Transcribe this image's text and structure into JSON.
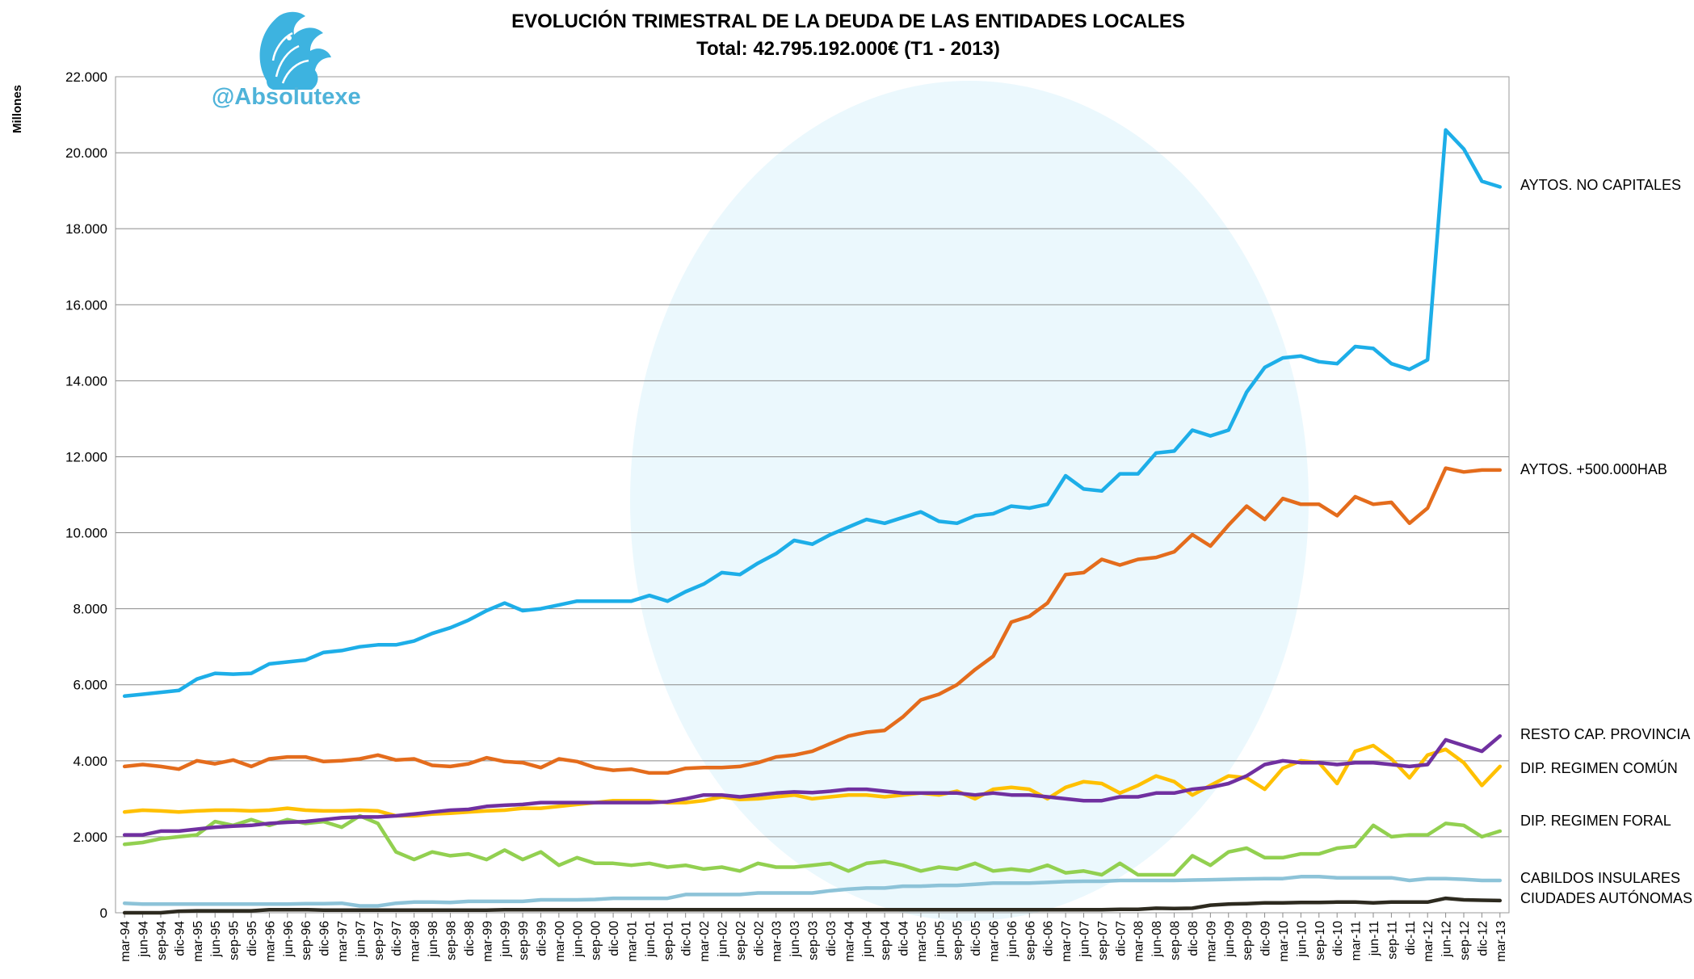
{
  "watermark": {
    "handle": "@Absolutexe",
    "logo_icon": "griffin-logo-icon"
  },
  "chart_data": {
    "type": "line",
    "title": "EVOLUCIÓN TRIMESTRAL DE LA DEUDA DE LAS ENTIDADES LOCALES",
    "subtitle": "Total: 42.795.192.000€ (T1 - 2013)",
    "xlabel": "",
    "ylabel": "Millones",
    "ylim": [
      0,
      22000
    ],
    "yticks": [
      0,
      2000,
      4000,
      6000,
      8000,
      10000,
      12000,
      14000,
      16000,
      18000,
      20000,
      22000
    ],
    "ytick_labels": [
      "0",
      "2.000",
      "4.000",
      "6.000",
      "8.000",
      "10.000",
      "12.000",
      "14.000",
      "16.000",
      "18.000",
      "20.000",
      "22.000"
    ],
    "grid": "horizontal",
    "legend": "labels at right end of each line",
    "categories": [
      "mar-94",
      "jun-94",
      "sep-94",
      "dic-94",
      "mar-95",
      "jun-95",
      "sep-95",
      "dic-95",
      "mar-96",
      "jun-96",
      "sep-96",
      "dic-96",
      "mar-97",
      "jun-97",
      "sep-97",
      "dic-97",
      "mar-98",
      "jun-98",
      "sep-98",
      "dic-98",
      "mar-99",
      "jun-99",
      "sep-99",
      "dic-99",
      "mar-00",
      "jun-00",
      "sep-00",
      "dic-00",
      "mar-01",
      "jun-01",
      "sep-01",
      "dic-01",
      "mar-02",
      "jun-02",
      "sep-02",
      "dic-02",
      "mar-03",
      "jun-03",
      "sep-03",
      "dic-03",
      "mar-04",
      "jun-04",
      "sep-04",
      "dic-04",
      "mar-05",
      "jun-05",
      "sep-05",
      "dic-05",
      "mar-06",
      "jun-06",
      "sep-06",
      "dic-06",
      "mar-07",
      "jun-07",
      "sep-07",
      "dic-07",
      "mar-08",
      "jun-08",
      "sep-08",
      "dic-08",
      "mar-09",
      "jun-09",
      "sep-09",
      "dic-09",
      "mar-10",
      "jun-10",
      "sep-10",
      "dic-10",
      "mar-11",
      "jun-11",
      "sep-11",
      "dic-11",
      "mar-12",
      "jun-12",
      "sep-12",
      "dic-12",
      "mar-13"
    ],
    "series": [
      {
        "name": "AYTOS. NO CAPITALES",
        "color": "#1daee8",
        "values": [
          5700,
          5750,
          5800,
          5850,
          6150,
          6300,
          6280,
          6300,
          6550,
          6600,
          6650,
          6850,
          6900,
          7000,
          7050,
          7050,
          7150,
          7350,
          7500,
          7700,
          7950,
          8150,
          7950,
          8000,
          8100,
          8200,
          8200,
          8200,
          8200,
          8350,
          8200,
          8450,
          8650,
          8950,
          8900,
          9200,
          9450,
          9800,
          9700,
          9950,
          10150,
          10350,
          10250,
          10400,
          10550,
          10300,
          10250,
          10450,
          10500,
          10700,
          10650,
          10750,
          11500,
          11150,
          11100,
          11550,
          11550,
          12100,
          12150,
          12700,
          12550,
          12700,
          13700,
          14350,
          14600,
          14650,
          14500,
          14450,
          14900,
          14850,
          14450,
          14300,
          14550,
          20600,
          20100,
          19250,
          19100
        ]
      },
      {
        "name": "AYTOS. +500.000HAB",
        "color": "#e46c1c",
        "values": [
          3850,
          3900,
          3850,
          3780,
          4000,
          3920,
          4020,
          3850,
          4050,
          4100,
          4100,
          3980,
          4000,
          4050,
          4150,
          4020,
          4050,
          3880,
          3850,
          3920,
          4080,
          3980,
          3950,
          3820,
          4050,
          3980,
          3820,
          3750,
          3780,
          3680,
          3680,
          3800,
          3820,
          3820,
          3850,
          3950,
          4100,
          4150,
          4250,
          4450,
          4650,
          4750,
          4800,
          5150,
          5600,
          5750,
          6000,
          6400,
          6750,
          7650,
          7800,
          8150,
          8900,
          8950,
          9300,
          9150,
          9300,
          9350,
          9500,
          9950,
          9650,
          10200,
          10700,
          10350,
          10900,
          10750,
          10750,
          10450,
          10950,
          10750,
          10800,
          10250,
          10650,
          11700,
          11600,
          11650,
          11650
        ]
      },
      {
        "name": "RESTO CAP. PROVINCIA",
        "color": "#7030a0",
        "values": [
          2050,
          2050,
          2150,
          2150,
          2200,
          2250,
          2280,
          2300,
          2350,
          2380,
          2400,
          2450,
          2500,
          2520,
          2520,
          2550,
          2600,
          2650,
          2700,
          2720,
          2800,
          2830,
          2850,
          2900,
          2900,
          2900,
          2900,
          2900,
          2900,
          2900,
          2920,
          3000,
          3100,
          3100,
          3050,
          3100,
          3150,
          3180,
          3160,
          3200,
          3250,
          3250,
          3200,
          3150,
          3150,
          3150,
          3150,
          3100,
          3150,
          3100,
          3100,
          3050,
          3000,
          2950,
          2950,
          3050,
          3050,
          3150,
          3150,
          3250,
          3300,
          3400,
          3600,
          3900,
          4000,
          3950,
          3950,
          3900,
          3950,
          3950,
          3900,
          3850,
          3900,
          4550,
          4400,
          4250,
          4650
        ]
      },
      {
        "name": "DIP. REGIMEN COMÚN",
        "color": "#ffc000",
        "values": [
          2650,
          2700,
          2680,
          2650,
          2680,
          2700,
          2700,
          2680,
          2700,
          2750,
          2700,
          2680,
          2680,
          2700,
          2680,
          2550,
          2550,
          2600,
          2620,
          2650,
          2680,
          2700,
          2750,
          2750,
          2800,
          2850,
          2900,
          2950,
          2950,
          2950,
          2900,
          2900,
          2950,
          3050,
          2980,
          3000,
          3050,
          3100,
          3000,
          3050,
          3100,
          3100,
          3050,
          3100,
          3150,
          3100,
          3200,
          3000,
          3250,
          3300,
          3250,
          3000,
          3300,
          3450,
          3400,
          3150,
          3350,
          3600,
          3450,
          3100,
          3350,
          3600,
          3550,
          3250,
          3800,
          4000,
          3950,
          3400,
          4250,
          4400,
          4050,
          3550,
          4150,
          4300,
          3950,
          3350,
          3850
        ]
      },
      {
        "name": "DIP. REGIMEN FORAL",
        "color": "#92d050",
        "values": [
          1800,
          1850,
          1950,
          2000,
          2050,
          2400,
          2300,
          2450,
          2300,
          2450,
          2350,
          2400,
          2250,
          2550,
          2350,
          1600,
          1400,
          1600,
          1500,
          1550,
          1400,
          1650,
          1400,
          1600,
          1250,
          1450,
          1300,
          1300,
          1250,
          1300,
          1200,
          1250,
          1150,
          1200,
          1100,
          1300,
          1200,
          1200,
          1250,
          1300,
          1100,
          1300,
          1350,
          1250,
          1100,
          1200,
          1150,
          1300,
          1100,
          1150,
          1100,
          1250,
          1050,
          1100,
          1000,
          1300,
          1000,
          1000,
          1000,
          1500,
          1250,
          1600,
          1700,
          1450,
          1450,
          1550,
          1550,
          1700,
          1750,
          2300,
          2000,
          2050,
          2050,
          2350,
          2300,
          2000,
          2150
        ]
      },
      {
        "name": "CABILDOS INSULARES",
        "color": "#8dc3d8",
        "values": [
          250,
          230,
          230,
          230,
          230,
          230,
          230,
          230,
          230,
          230,
          240,
          240,
          250,
          180,
          180,
          250,
          280,
          280,
          270,
          300,
          300,
          300,
          300,
          340,
          340,
          340,
          350,
          380,
          380,
          380,
          380,
          480,
          480,
          480,
          480,
          520,
          520,
          520,
          520,
          580,
          620,
          650,
          650,
          700,
          700,
          720,
          720,
          750,
          780,
          780,
          780,
          800,
          820,
          830,
          830,
          850,
          850,
          850,
          850,
          860,
          870,
          880,
          890,
          900,
          900,
          950,
          950,
          920,
          920,
          920,
          920,
          850,
          900,
          900,
          880,
          850,
          850
        ]
      },
      {
        "name": "CIUDADES AUTÓNOMAS",
        "color": "#2d2a1f",
        "values": [
          0,
          0,
          0,
          40,
          50,
          50,
          50,
          50,
          80,
          80,
          80,
          70,
          70,
          70,
          70,
          70,
          70,
          70,
          70,
          70,
          70,
          80,
          80,
          80,
          80,
          80,
          80,
          80,
          80,
          80,
          80,
          80,
          80,
          80,
          80,
          80,
          80,
          80,
          80,
          80,
          80,
          80,
          80,
          80,
          80,
          80,
          80,
          80,
          80,
          80,
          80,
          80,
          80,
          80,
          80,
          90,
          90,
          120,
          110,
          120,
          200,
          230,
          240,
          260,
          260,
          270,
          270,
          280,
          280,
          260,
          280,
          280,
          280,
          380,
          340,
          330,
          320
        ]
      }
    ]
  }
}
